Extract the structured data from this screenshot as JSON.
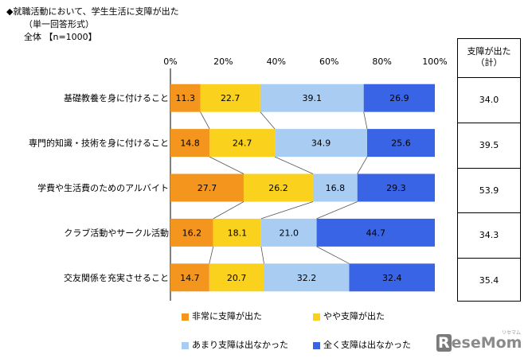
{
  "header": {
    "line1": "◆就職活動において、学生生活に支障が出た",
    "line2": "（単一回答形式）",
    "line3": "全体 【n=1000】"
  },
  "chart_data": {
    "type": "bar",
    "orientation": "horizontal",
    "stacked": true,
    "xlim": [
      0,
      100
    ],
    "x_ticks": [
      "0%",
      "20%",
      "40%",
      "60%",
      "80%",
      "100%"
    ],
    "categories": [
      "基礎教養を身に付けること",
      "専門的知識・技術を身に付けること",
      "学費や生活費のためのアルバイト",
      "クラブ活動やサークル活動",
      "交友関係を充実させること"
    ],
    "series": [
      {
        "name": "非常に支障が出た",
        "color": "#f4961e",
        "values": [
          11.3,
          14.8,
          27.7,
          16.2,
          14.7
        ]
      },
      {
        "name": "やや支障が出た",
        "color": "#fad21e",
        "values": [
          22.7,
          24.7,
          26.2,
          18.1,
          20.7
        ]
      },
      {
        "name": "あまり支障は出なかった",
        "color": "#a8ccf2",
        "values": [
          39.1,
          34.9,
          16.8,
          21.0,
          32.2
        ]
      },
      {
        "name": "全く支障は出なかった",
        "color": "#3a64e6",
        "values": [
          26.9,
          25.6,
          29.3,
          44.7,
          32.4
        ]
      }
    ],
    "legend_position": "bottom",
    "grid": false
  },
  "totals": {
    "header_line1": "支障が出た",
    "header_line2": "（計）",
    "values": [
      "34.0",
      "39.5",
      "53.9",
      "34.3",
      "35.4"
    ]
  },
  "logo": {
    "text_r": "R",
    "text_rest": "eseMom",
    "sub": "リセマム"
  }
}
